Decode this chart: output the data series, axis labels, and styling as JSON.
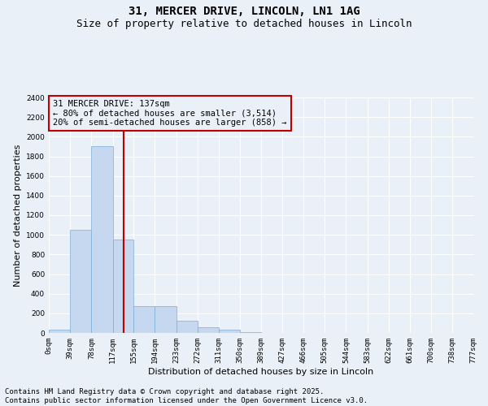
{
  "title_line1": "31, MERCER DRIVE, LINCOLN, LN1 1AG",
  "title_line2": "Size of property relative to detached houses in Lincoln",
  "xlabel": "Distribution of detached houses by size in Lincoln",
  "ylabel": "Number of detached properties",
  "bar_values": [
    30,
    1050,
    1900,
    950,
    275,
    275,
    125,
    55,
    30,
    5,
    0,
    0,
    0,
    0,
    0,
    0,
    0,
    0,
    0,
    0
  ],
  "bin_edges": [
    0,
    39,
    78,
    117,
    155,
    194,
    233,
    272,
    311,
    350,
    389,
    427,
    466,
    505,
    544,
    583,
    622,
    661,
    700,
    738,
    777
  ],
  "tick_labels": [
    "0sqm",
    "39sqm",
    "78sqm",
    "117sqm",
    "155sqm",
    "194sqm",
    "233sqm",
    "272sqm",
    "311sqm",
    "350sqm",
    "389sqm",
    "427sqm",
    "466sqm",
    "505sqm",
    "544sqm",
    "583sqm",
    "622sqm",
    "661sqm",
    "700sqm",
    "738sqm",
    "777sqm"
  ],
  "bar_color": "#c5d8f0",
  "bar_edge_color": "#7badd4",
  "red_line_x": 137,
  "ylim": [
    0,
    2400
  ],
  "yticks": [
    0,
    200,
    400,
    600,
    800,
    1000,
    1200,
    1400,
    1600,
    1800,
    2000,
    2200,
    2400
  ],
  "annotation_title": "31 MERCER DRIVE: 137sqm",
  "annotation_line1": "← 80% of detached houses are smaller (3,514)",
  "annotation_line2": "20% of semi-detached houses are larger (858) →",
  "annotation_box_color": "#c00000",
  "footer_line1": "Contains HM Land Registry data © Crown copyright and database right 2025.",
  "footer_line2": "Contains public sector information licensed under the Open Government Licence v3.0.",
  "background_color": "#eaf0f8",
  "grid_color": "#ffffff",
  "title_fontsize": 10,
  "subtitle_fontsize": 9,
  "axis_label_fontsize": 8,
  "tick_fontsize": 6.5,
  "annotation_fontsize": 7.5,
  "footer_fontsize": 6.5,
  "ylabel_fontsize": 8
}
